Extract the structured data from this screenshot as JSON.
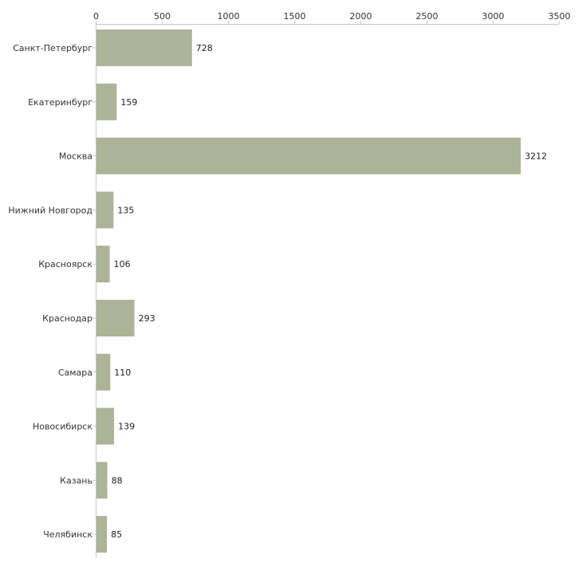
{
  "chart_data": {
    "type": "bar",
    "orientation": "horizontal",
    "title": "",
    "xlabel": "",
    "ylabel": "",
    "xlim": [
      0,
      3500
    ],
    "ticks": [
      0,
      500,
      1000,
      1500,
      2000,
      2500,
      3000,
      3500
    ],
    "tick_labels": [
      "0",
      "500",
      "1000",
      "1500",
      "2000",
      "2500",
      "3000",
      "3500"
    ],
    "categories": [
      "Санкт-Петербург",
      "Екатеринбург",
      "Москва",
      "Нижний Новгород",
      "Красноярск",
      "Краснодар",
      "Самара",
      "Новосибирск",
      "Казань",
      "Челябинск"
    ],
    "values": [
      728,
      159,
      3212,
      135,
      106,
      293,
      110,
      139,
      88,
      85
    ],
    "value_labels": [
      "728",
      "159",
      "3212",
      "135",
      "106",
      "293",
      "110",
      "139",
      "88",
      "85"
    ],
    "grid": false,
    "legend": "none",
    "bar_color": "#adb397",
    "axis_color": "#c8c8c8"
  }
}
